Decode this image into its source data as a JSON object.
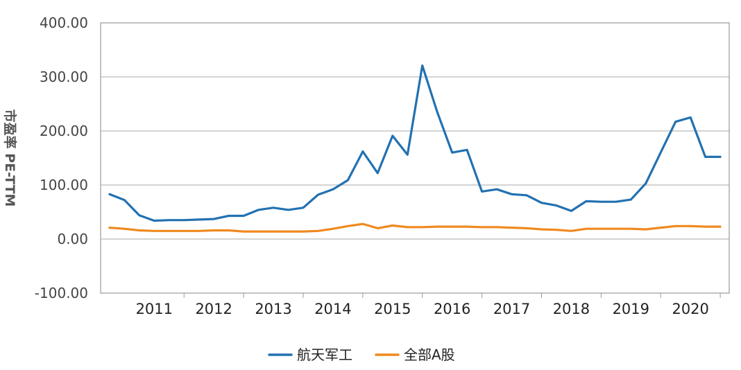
{
  "chart_data": {
    "type": "line",
    "title": "",
    "xlabel": "",
    "ylabel": "市盈率 PE-TTM",
    "ylim": [
      -100,
      400
    ],
    "yticks": [
      400,
      300,
      200,
      100,
      0,
      -100
    ],
    "ytick_labels": [
      "400.00",
      "300.00",
      "200.00",
      "100.00",
      "0.00",
      "-100.00"
    ],
    "xtick_labels": [
      "2011",
      "2012",
      "2013",
      "2014",
      "2015",
      "2016",
      "2017",
      "2018",
      "2019",
      "2020"
    ],
    "grid": true,
    "legend_position": "bottom-center",
    "series": [
      {
        "name": "航天军工",
        "color": "#2271b1",
        "x": [
          2010.75,
          2011.0,
          2011.25,
          2011.5,
          2011.75,
          2012.0,
          2012.25,
          2012.5,
          2012.75,
          2013.0,
          2013.25,
          2013.5,
          2013.75,
          2014.0,
          2014.25,
          2014.5,
          2014.75,
          2015.0,
          2015.25,
          2015.5,
          2015.75,
          2016.0,
          2016.25,
          2016.5,
          2016.75,
          2017.0,
          2017.25,
          2017.5,
          2017.75,
          2018.0,
          2018.25,
          2018.5,
          2018.75,
          2019.0,
          2019.25,
          2019.5,
          2019.75,
          2020.0,
          2020.25,
          2020.5,
          2020.75,
          2021.0
        ],
        "values": [
          83,
          72,
          44,
          34,
          35,
          35,
          36,
          37,
          43,
          43,
          54,
          58,
          54,
          58,
          82,
          92,
          109,
          162,
          122,
          191,
          156,
          321,
          235,
          160,
          165,
          88,
          92,
          83,
          81,
          67,
          62,
          52,
          70,
          69,
          69,
          73,
          103,
          160,
          217,
          225,
          152,
          152
        ]
      },
      {
        "name": "全部A股",
        "color": "#f0891e",
        "x": [
          2010.75,
          2011.0,
          2011.25,
          2011.5,
          2011.75,
          2012.0,
          2012.25,
          2012.5,
          2012.75,
          2013.0,
          2013.25,
          2013.5,
          2013.75,
          2014.0,
          2014.25,
          2014.5,
          2014.75,
          2015.0,
          2015.25,
          2015.5,
          2015.75,
          2016.0,
          2016.25,
          2016.5,
          2016.75,
          2017.0,
          2017.25,
          2017.5,
          2017.75,
          2018.0,
          2018.25,
          2018.5,
          2018.75,
          2019.0,
          2019.25,
          2019.5,
          2019.75,
          2020.0,
          2020.25,
          2020.5,
          2020.75,
          2021.0
        ],
        "values": [
          21,
          19,
          16,
          15,
          15,
          15,
          15,
          16,
          16,
          14,
          14,
          14,
          14,
          14,
          15,
          19,
          24,
          28,
          20,
          25,
          22,
          22,
          23,
          23,
          23,
          22,
          22,
          21,
          20,
          18,
          17,
          15,
          19,
          19,
          19,
          19,
          18,
          21,
          24,
          24,
          23,
          23
        ]
      }
    ]
  }
}
